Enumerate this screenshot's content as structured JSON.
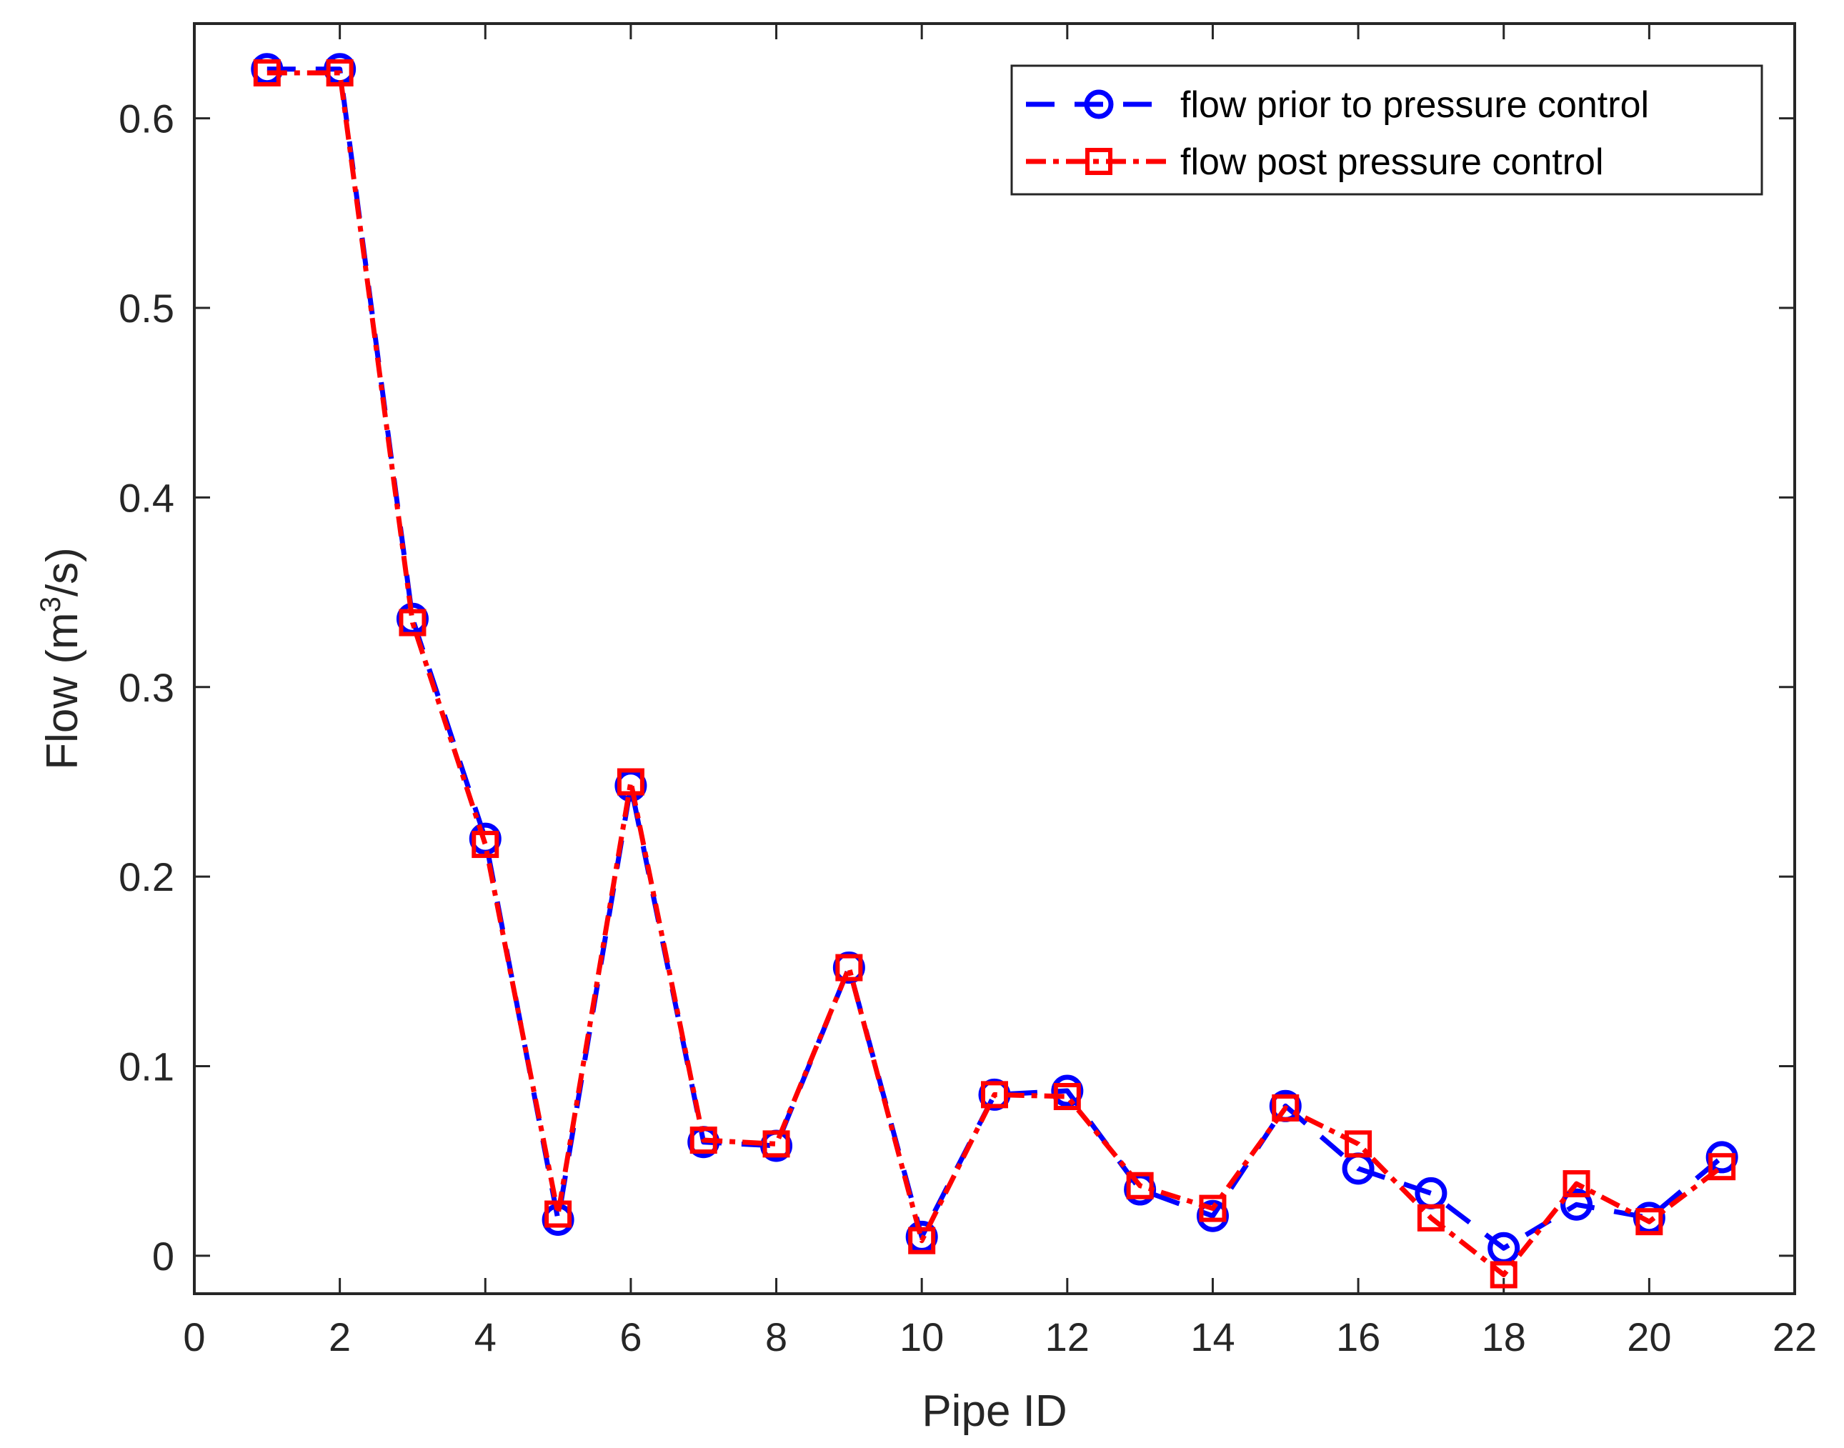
{
  "chart_data": {
    "type": "line",
    "title": "",
    "xlabel": "Pipe ID",
    "ylabel_prefix": "Flow (m",
    "ylabel_superscript": "3",
    "ylabel_suffix": "/s)",
    "xlim": [
      0,
      22
    ],
    "ylim": [
      -0.02,
      0.65
    ],
    "xticks": [
      0,
      2,
      4,
      6,
      8,
      10,
      12,
      14,
      16,
      18,
      20,
      22
    ],
    "xtick_labels": [
      "0",
      "2",
      "4",
      "6",
      "8",
      "10",
      "12",
      "14",
      "16",
      "18",
      "20",
      "22"
    ],
    "yticks": [
      0,
      0.1,
      0.2,
      0.3,
      0.4,
      0.5,
      0.6
    ],
    "ytick_labels": [
      "0",
      "0.1",
      "0.2",
      "0.3",
      "0.4",
      "0.5",
      "0.6"
    ],
    "grid": false,
    "legend_position": "top-right",
    "x": [
      1,
      2,
      3,
      4,
      5,
      6,
      7,
      8,
      9,
      10,
      11,
      12,
      13,
      14,
      15,
      16,
      17,
      18,
      19,
      20,
      21
    ],
    "series": [
      {
        "name": "flow prior to pressure control",
        "color": "#0000ff",
        "marker": "circle",
        "line_style": "dashed",
        "values": [
          0.626,
          0.626,
          0.336,
          0.22,
          0.019,
          0.248,
          0.06,
          0.058,
          0.152,
          0.01,
          0.085,
          0.087,
          0.035,
          0.021,
          0.079,
          0.046,
          0.033,
          0.004,
          0.027,
          0.02,
          0.052
        ]
      },
      {
        "name": "flow post pressure control",
        "color": "#ff0000",
        "marker": "square",
        "line_style": "dashdot",
        "values": [
          0.624,
          0.624,
          0.334,
          0.217,
          0.022,
          0.25,
          0.061,
          0.059,
          0.152,
          0.008,
          0.085,
          0.084,
          0.037,
          0.025,
          0.078,
          0.059,
          0.02,
          -0.01,
          0.038,
          0.018,
          0.047
        ]
      }
    ]
  }
}
